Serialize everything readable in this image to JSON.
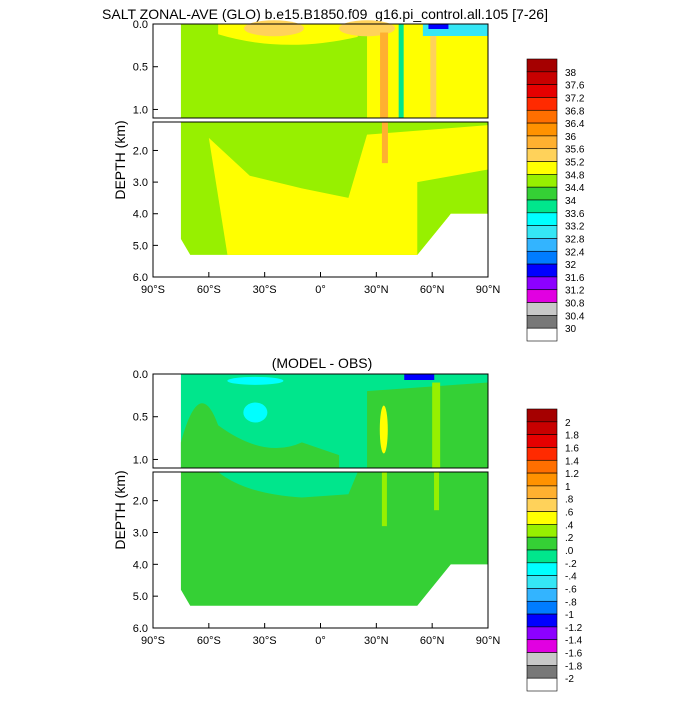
{
  "figure": {
    "title": "SALT ZONAL-AVE (GLO) b.e15.B1850.f09_g16.pi_control.all.105 [7-26]"
  },
  "chart_data": [
    {
      "type": "heatmap",
      "title": "SALT ZONAL-AVE (GLO) b.e15.B1850.f09_g16.pi_control.all.105 [7-26]",
      "xlabel": "",
      "ylabel": "DEPTH (km)",
      "x_ticks": [
        "90°S",
        "60°S",
        "30°S",
        "0°",
        "30°N",
        "60°N",
        "90°N"
      ],
      "xlim": [
        -90,
        90
      ],
      "y_ticks_upper": [
        "0.0",
        "0.5",
        "1.0"
      ],
      "y_ticks_lower": [
        "2.0",
        "3.0",
        "4.0",
        "5.0",
        "6.0"
      ],
      "ylim_upper": [
        0,
        1.1
      ],
      "ylim_lower": [
        1.1,
        6.0
      ],
      "colorbar_labels": [
        "38",
        "37.6",
        "37.2",
        "36.8",
        "36.4",
        "36",
        "35.6",
        "35.2",
        "34.8",
        "34.4",
        "34",
        "33.6",
        "33.2",
        "32.8",
        "32.4",
        "32",
        "31.6",
        "31.2",
        "30.8",
        "30.4",
        "30"
      ],
      "colors": [
        "#a50000",
        "#c80000",
        "#e60000",
        "#ff2a00",
        "#ff6f00",
        "#ff9200",
        "#ffb030",
        "#ffd25a",
        "#ffff00",
        "#97f000",
        "#35d035",
        "#00e68c",
        "#00ffff",
        "#35e6f5",
        "#33b4ff",
        "#007cff",
        "#0000ff",
        "#8c00ff",
        "#e100e1",
        "#c8c8c8",
        "#787878",
        "#ffffff"
      ],
      "field_levels_upper": [
        {
          "lat": -72,
          "depth_km": 0.1,
          "value": 34.2
        },
        {
          "lat": -45,
          "depth_km": 0.3,
          "value": 34.4
        },
        {
          "lat": -20,
          "depth_km": 0.05,
          "value": 35.3
        },
        {
          "lat": 20,
          "depth_km": 0.05,
          "value": 35.5
        },
        {
          "lat": 34,
          "depth_km": 0.6,
          "value": 35.8
        },
        {
          "lat": 42,
          "depth_km": 0.4,
          "value": 33.8
        },
        {
          "lat": 62,
          "depth_km": 0.4,
          "value": 35.1
        }
      ],
      "field_levels_lower": [
        {
          "lat": -60,
          "depth_km": 2.5,
          "value": 34.7
        },
        {
          "lat": -20,
          "depth_km": 3.5,
          "value": 34.9
        },
        {
          "lat": 35,
          "depth_km": 2.0,
          "value": 35.0
        },
        {
          "lat": 70,
          "depth_km": 3.0,
          "value": 35.0
        }
      ]
    },
    {
      "type": "heatmap",
      "title": "(MODEL - OBS)",
      "xlabel": "",
      "ylabel": "DEPTH (km)",
      "x_ticks": [
        "90°S",
        "60°S",
        "30°S",
        "0°",
        "30°N",
        "60°N",
        "90°N"
      ],
      "xlim": [
        -90,
        90
      ],
      "y_ticks_upper": [
        "0.0",
        "0.5",
        "1.0"
      ],
      "y_ticks_lower": [
        "2.0",
        "3.0",
        "4.0",
        "5.0",
        "6.0"
      ],
      "ylim_upper": [
        0,
        1.1
      ],
      "ylim_lower": [
        1.1,
        6.0
      ],
      "colorbar_labels": [
        "2",
        "1.8",
        "1.6",
        "1.4",
        "1.2",
        "1",
        ".8",
        ".6",
        ".4",
        ".2",
        ".0",
        "-.2",
        "-.4",
        "-.6",
        "-.8",
        "-1",
        "-1.2",
        "-1.4",
        "-1.6",
        "-1.8",
        "-2"
      ],
      "colors": [
        "#a50000",
        "#c80000",
        "#e60000",
        "#ff2a00",
        "#ff6f00",
        "#ff9200",
        "#ffb030",
        "#ffd25a",
        "#ffff00",
        "#97f000",
        "#35d035",
        "#00e68c",
        "#00ffff",
        "#35e6f5",
        "#33b4ff",
        "#007cff",
        "#0000ff",
        "#8c00ff",
        "#e100e1",
        "#c8c8c8",
        "#787878",
        "#ffffff"
      ],
      "field_levels_upper": [
        {
          "lat": -40,
          "depth_km": 0.4,
          "value": -0.1
        },
        {
          "lat": -50,
          "depth_km": 0.3,
          "value": 0.1
        },
        {
          "lat": 34,
          "depth_km": 0.6,
          "value": 0.5
        },
        {
          "lat": 62,
          "depth_km": 0.5,
          "value": 0.3
        }
      ],
      "field_levels_lower": [
        {
          "lat": -30,
          "depth_km": 3.5,
          "value": 0.1
        },
        {
          "lat": 35,
          "depth_km": 2.4,
          "value": 0.3
        }
      ]
    }
  ]
}
